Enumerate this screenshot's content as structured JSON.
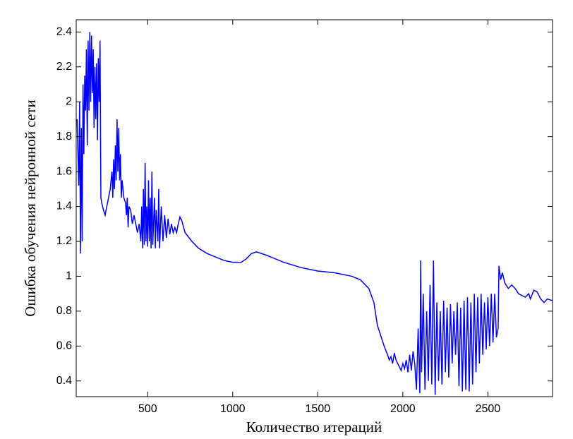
{
  "chart_data": {
    "type": "line",
    "xlabel": "Количество итераций",
    "ylabel": "Ошибка обучения нейронной сети",
    "color": "#0000ff",
    "xlim": [
      80,
      2880
    ],
    "ylim": [
      0.31,
      2.47
    ],
    "xticks": [
      500,
      1000,
      1500,
      2000,
      2500
    ],
    "yticks": [
      0.4,
      0.6,
      0.8,
      1,
      1.2,
      1.4,
      1.6,
      1.8,
      2,
      2.2,
      2.4
    ],
    "x": [
      85,
      95,
      100,
      105,
      110,
      115,
      120,
      125,
      130,
      135,
      140,
      145,
      150,
      155,
      160,
      165,
      170,
      175,
      180,
      185,
      190,
      195,
      200,
      205,
      210,
      215,
      220,
      225,
      230,
      240,
      250,
      260,
      270,
      280,
      290,
      295,
      300,
      305,
      310,
      315,
      320,
      325,
      330,
      335,
      340,
      345,
      350,
      360,
      370,
      375,
      380,
      385,
      390,
      400,
      410,
      420,
      430,
      440,
      450,
      460,
      465,
      470,
      475,
      480,
      485,
      490,
      495,
      500,
      505,
      510,
      515,
      520,
      525,
      530,
      540,
      545,
      550,
      560,
      565,
      570,
      580,
      590,
      600,
      610,
      620,
      630,
      640,
      650,
      660,
      670,
      680,
      690,
      700,
      720,
      760,
      800,
      850,
      900,
      950,
      1000,
      1050,
      1080,
      1110,
      1140,
      1200,
      1300,
      1400,
      1500,
      1600,
      1700,
      1750,
      1800,
      1830,
      1850,
      1870,
      1890,
      1910,
      1920,
      1930,
      1940,
      1950,
      1960,
      1970,
      1980,
      1990,
      2000,
      2010,
      2020,
      2030,
      2040,
      2050,
      2060,
      2070,
      2080,
      2090,
      2100,
      2105,
      2110,
      2120,
      2130,
      2140,
      2150,
      2160,
      2170,
      2180,
      2190,
      2200,
      2210,
      2220,
      2230,
      2240,
      2250,
      2260,
      2270,
      2280,
      2290,
      2300,
      2310,
      2320,
      2330,
      2340,
      2350,
      2360,
      2370,
      2380,
      2390,
      2400,
      2410,
      2420,
      2430,
      2440,
      2450,
      2460,
      2470,
      2480,
      2490,
      2500,
      2510,
      2520,
      2530,
      2540,
      2550,
      2560,
      2565,
      2575,
      2585,
      2600,
      2620,
      2640,
      2660,
      2680,
      2700,
      2720,
      2740,
      2750,
      2770,
      2790,
      2810,
      2830,
      2850,
      2880
    ],
    "values": [
      1.9,
      1.52,
      2.0,
      1.13,
      1.85,
      1.2,
      2.1,
      1.7,
      2.15,
      1.95,
      2.3,
      1.75,
      2.35,
      1.95,
      2.4,
      2.0,
      2.38,
      2.05,
      2.3,
      1.85,
      2.2,
      1.9,
      2.22,
      1.78,
      2.25,
      2.0,
      2.35,
      1.45,
      1.42,
      1.38,
      1.35,
      1.4,
      1.45,
      1.5,
      1.6,
      1.45,
      1.67,
      1.5,
      1.75,
      1.55,
      1.9,
      1.6,
      1.85,
      1.55,
      1.7,
      1.45,
      1.55,
      1.45,
      1.42,
      1.35,
      1.45,
      1.28,
      1.4,
      1.38,
      1.3,
      1.35,
      1.3,
      1.25,
      1.3,
      1.2,
      1.4,
      1.16,
      1.5,
      1.18,
      1.65,
      1.2,
      1.4,
      1.17,
      1.55,
      1.2,
      1.45,
      1.16,
      1.6,
      1.18,
      1.45,
      1.16,
      1.38,
      1.2,
      1.5,
      1.16,
      1.4,
      1.2,
      1.35,
      1.22,
      1.33,
      1.24,
      1.3,
      1.25,
      1.28,
      1.25,
      1.3,
      1.34,
      1.32,
      1.25,
      1.2,
      1.16,
      1.13,
      1.11,
      1.09,
      1.08,
      1.08,
      1.1,
      1.13,
      1.14,
      1.12,
      1.08,
      1.05,
      1.03,
      1.02,
      1.0,
      0.98,
      0.93,
      0.85,
      0.72,
      0.66,
      0.6,
      0.55,
      0.52,
      0.54,
      0.5,
      0.56,
      0.52,
      0.5,
      0.48,
      0.46,
      0.5,
      0.47,
      0.52,
      0.45,
      0.55,
      0.46,
      0.57,
      0.5,
      0.35,
      0.7,
      0.33,
      1.09,
      0.45,
      0.9,
      0.35,
      0.8,
      0.4,
      0.95,
      0.38,
      1.09,
      0.32,
      0.85,
      0.4,
      0.8,
      0.38,
      0.86,
      0.45,
      0.82,
      0.42,
      0.84,
      0.5,
      0.8,
      0.55,
      0.85,
      0.37,
      0.82,
      0.34,
      0.86,
      0.35,
      0.88,
      0.34,
      0.85,
      0.38,
      0.9,
      0.45,
      0.88,
      0.5,
      0.9,
      0.55,
      0.85,
      0.58,
      0.88,
      0.6,
      0.9,
      0.62,
      0.9,
      0.65,
      0.7,
      1.06,
      0.98,
      1.02,
      0.96,
      0.93,
      0.95,
      0.93,
      0.9,
      0.89,
      0.88,
      0.9,
      0.87,
      0.92,
      0.91,
      0.87,
      0.85,
      0.87,
      0.86
    ]
  }
}
